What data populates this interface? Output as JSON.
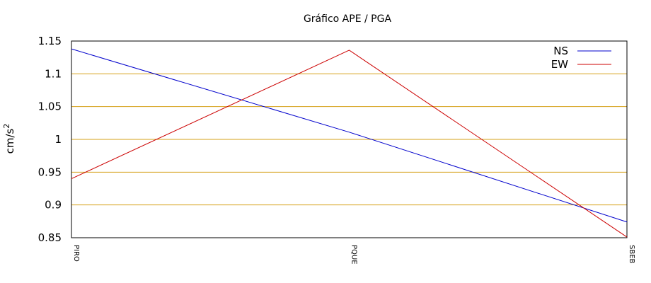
{
  "chart_data": {
    "type": "line",
    "title": "Gráfico  APE / PGA",
    "ylabel": "cm/s",
    "ylabel_sup": "2",
    "categories": [
      "PIRO",
      "PQUE",
      "SBEB"
    ],
    "yticks": [
      "0.85",
      "0.9",
      "0.95",
      "1",
      "1.05",
      "1.1",
      "1.15"
    ],
    "ytick_values": [
      0.85,
      0.9,
      0.95,
      1.0,
      1.05,
      1.1,
      1.15
    ],
    "ylim": [
      0.85,
      1.15
    ],
    "grid": "horizontal",
    "grid_color": "#d4a017",
    "legend_position": "top-right",
    "series": [
      {
        "name": "NS",
        "color": "#0000cc",
        "values": [
          1.138,
          1.011,
          0.874
        ]
      },
      {
        "name": "EW",
        "color": "#cc0000",
        "values": [
          0.94,
          1.136,
          0.851
        ]
      }
    ]
  }
}
